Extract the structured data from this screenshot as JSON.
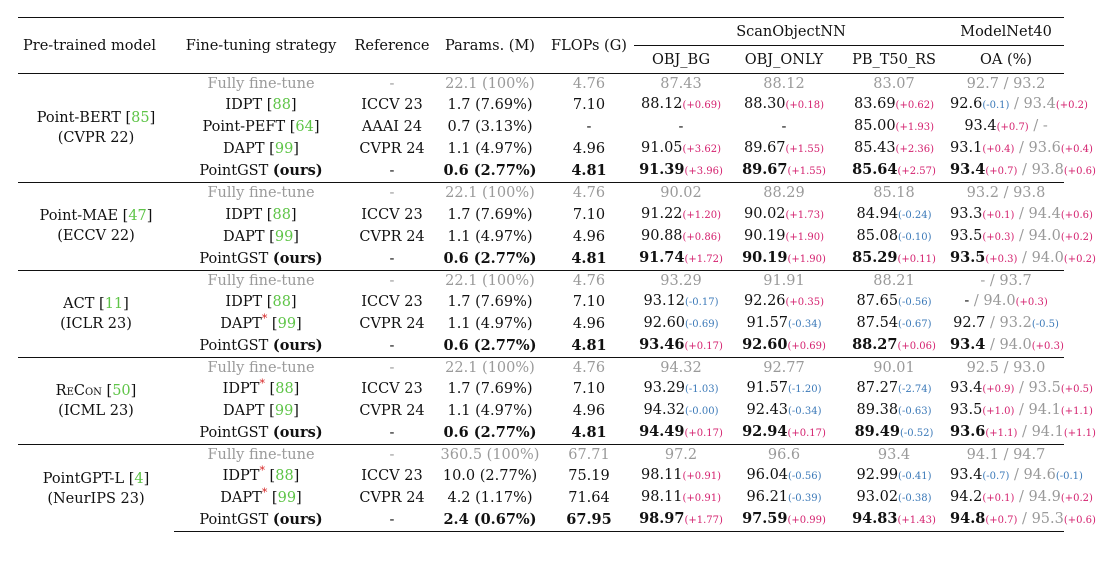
{
  "headers": {
    "model": "Pre-trained model",
    "strategy": "Fine-tuning strategy",
    "reference": "Reference",
    "params": "Params. (M)",
    "flops": "FLOPs (G)",
    "scan": "ScanObjectNN",
    "modelnet": "ModelNet40",
    "obj_bg": "OBJ_BG",
    "obj_only": "OBJ_ONLY",
    "pb": "PB_T50_RS",
    "oa": "OA (%)",
    "oa_sep": " / "
  },
  "groups": [
    {
      "model": "Point-BERT",
      "model_cite": "85",
      "venue": "(CVPR 22)",
      "rows": [
        {
          "strategy": "Fully fine-tune",
          "ref": "-",
          "params": "22.1 (100%)",
          "flops": "4.76",
          "obj_bg": "87.43",
          "obj_only": "88.12",
          "pb": "83.07",
          "oa1": "92.7",
          "oa2": "93.2"
        },
        {
          "strategy": "IDPT",
          "cite": "88",
          "ref": "ICCV 23",
          "params": "1.7 (7.69%)",
          "flops": "7.10",
          "obj_bg": "88.12",
          "obj_bg_d": "(+0.69)",
          "obj_only": "88.30",
          "obj_only_d": "(+0.18)",
          "pb": "83.69",
          "pb_d": "(+0.62)",
          "oa1": "92.6",
          "oa1_d": "(-0.1)",
          "oa2": "93.4",
          "oa2_d": "(+0.2)"
        },
        {
          "strategy": "Point-PEFT",
          "cite": "64",
          "ref": "AAAI 24",
          "params": "0.7 (3.13%)",
          "flops": "-",
          "obj_bg": "-",
          "obj_only": "-",
          "pb": "85.00",
          "pb_d": "(+1.93)",
          "oa1": "93.4",
          "oa1_d": "(+0.7)",
          "oa2": "-"
        },
        {
          "strategy": "DAPT",
          "cite": "99",
          "ref": "CVPR 24",
          "params": "1.1 (4.97%)",
          "flops": "4.96",
          "obj_bg": "91.05",
          "obj_bg_d": "(+3.62)",
          "obj_only": "89.67",
          "obj_only_d": "(+1.55)",
          "pb": "85.43",
          "pb_d": "(+2.36)",
          "oa1": "93.1",
          "oa1_d": "(+0.4)",
          "oa2": "93.6",
          "oa2_d": "(+0.4)"
        },
        {
          "strategy": "PointGST",
          "ours": "(ours)",
          "ref": "-",
          "params": "0.6 (2.77%)",
          "flops": "4.81",
          "obj_bg": "91.39",
          "obj_bg_d": "(+3.96)",
          "obj_only": "89.67",
          "obj_only_d": "(+1.55)",
          "pb": "85.64",
          "pb_d": "(+2.57)",
          "oa1": "93.4",
          "oa1_d": "(+0.7)",
          "oa2": "93.8",
          "oa2_d": "(+0.6)"
        }
      ]
    },
    {
      "model": "Point-MAE",
      "model_cite": "47",
      "venue": "(ECCV 22)",
      "rows": [
        {
          "strategy": "Fully fine-tune",
          "ref": "-",
          "params": "22.1 (100%)",
          "flops": "4.76",
          "obj_bg": "90.02",
          "obj_only": "88.29",
          "pb": "85.18",
          "oa1": "93.2",
          "oa2": "93.8"
        },
        {
          "strategy": "IDPT",
          "cite": "88",
          "ref": "ICCV 23",
          "params": "1.7 (7.69%)",
          "flops": "7.10",
          "obj_bg": "91.22",
          "obj_bg_d": "(+1.20)",
          "obj_only": "90.02",
          "obj_only_d": "(+1.73)",
          "pb": "84.94",
          "pb_d": "(-0.24)",
          "oa1": "93.3",
          "oa1_d": "(+0.1)",
          "oa2": "94.4",
          "oa2_d": "(+0.6)"
        },
        {
          "strategy": "DAPT",
          "cite": "99",
          "ref": "CVPR 24",
          "params": "1.1 (4.97%)",
          "flops": "4.96",
          "obj_bg": "90.88",
          "obj_bg_d": "(+0.86)",
          "obj_only": "90.19",
          "obj_only_d": "(+1.90)",
          "pb": "85.08",
          "pb_d": "(-0.10)",
          "oa1": "93.5",
          "oa1_d": "(+0.3)",
          "oa2": "94.0",
          "oa2_d": "(+0.2)"
        },
        {
          "strategy": "PointGST",
          "ours": "(ours)",
          "ref": "-",
          "params": "0.6 (2.77%)",
          "flops": "4.81",
          "obj_bg": "91.74",
          "obj_bg_d": "(+1.72)",
          "obj_only": "90.19",
          "obj_only_d": "(+1.90)",
          "pb": "85.29",
          "pb_d": "(+0.11)",
          "oa1": "93.5",
          "oa1_d": "(+0.3)",
          "oa2": "94.0",
          "oa2_d": "(+0.2)"
        }
      ]
    },
    {
      "model": "ACT",
      "model_cite": "11",
      "venue": "(ICLR 23)",
      "rows": [
        {
          "strategy": "Fully fine-tune",
          "ref": "-",
          "params": "22.1 (100%)",
          "flops": "4.76",
          "obj_bg": "93.29",
          "obj_only": "91.91",
          "pb": "88.21",
          "oa1": "-",
          "oa2": "93.7"
        },
        {
          "strategy": "IDPT",
          "cite": "88",
          "ref": "ICCV 23",
          "params": "1.7 (7.69%)",
          "flops": "7.10",
          "obj_bg": "93.12",
          "obj_bg_d": "(-0.17)",
          "obj_only": "92.26",
          "obj_only_d": "(+0.35)",
          "pb": "87.65",
          "pb_d": "(-0.56)",
          "oa1": "-",
          "oa2": "94.0",
          "oa2_d": "(+0.3)"
        },
        {
          "strategy": "DAPT",
          "star": "*",
          "cite": "99",
          "ref": "CVPR 24",
          "params": "1.1 (4.97%)",
          "flops": "4.96",
          "obj_bg": "92.60",
          "obj_bg_d": "(-0.69)",
          "obj_only": "91.57",
          "obj_only_d": "(-0.34)",
          "pb": "87.54",
          "pb_d": "(-0.67)",
          "oa1": "92.7",
          "oa2": "93.2",
          "oa2_d": "(-0.5)"
        },
        {
          "strategy": "PointGST",
          "ours": "(ours)",
          "ref": "-",
          "params": "0.6 (2.77%)",
          "flops": "4.81",
          "obj_bg": "93.46",
          "obj_bg_d": "(+0.17)",
          "obj_only": "92.60",
          "obj_only_d": "(+0.69)",
          "pb": "88.27",
          "pb_d": "(+0.06)",
          "oa1": "93.4",
          "oa2": "94.0",
          "oa2_d": "(+0.3)"
        }
      ]
    },
    {
      "model": "ReCon",
      "model_cite": "50",
      "venue": "(ICML 23)",
      "rows": [
        {
          "strategy": "Fully fine-tune",
          "ref": "-",
          "params": "22.1 (100%)",
          "flops": "4.76",
          "obj_bg": "94.32",
          "obj_only": "92.77",
          "pb": "90.01",
          "oa1": "92.5",
          "oa2": "93.0"
        },
        {
          "strategy": "IDPT",
          "star": "*",
          "cite": "88",
          "ref": "ICCV 23",
          "params": "1.7 (7.69%)",
          "flops": "7.10",
          "obj_bg": "93.29",
          "obj_bg_d": "(-1.03)",
          "obj_only": "91.57",
          "obj_only_d": "(-1.20)",
          "pb": "87.27",
          "pb_d": "(-2.74)",
          "oa1": "93.4",
          "oa1_d": "(+0.9)",
          "oa2": "93.5",
          "oa2_d": "(+0.5)"
        },
        {
          "strategy": "DAPT",
          "cite": "99",
          "ref": "CVPR 24",
          "params": "1.1 (4.97%)",
          "flops": "4.96",
          "obj_bg": "94.32",
          "obj_bg_d": "(-0.00)",
          "obj_only": "92.43",
          "obj_only_d": "(-0.34)",
          "pb": "89.38",
          "pb_d": "(-0.63)",
          "oa1": "93.5",
          "oa1_d": "(+1.0)",
          "oa2": "94.1",
          "oa2_d": "(+1.1)"
        },
        {
          "strategy": "PointGST",
          "ours": "(ours)",
          "ref": "-",
          "params": "0.6 (2.77%)",
          "flops": "4.81",
          "obj_bg": "94.49",
          "obj_bg_d": "(+0.17)",
          "obj_only": "92.94",
          "obj_only_d": "(+0.17)",
          "pb": "89.49",
          "pb_d": "(-0.52)",
          "oa1": "93.6",
          "oa1_d": "(+1.1)",
          "oa2": "94.1",
          "oa2_d": "(+1.1)"
        }
      ]
    },
    {
      "model": "PointGPT-L",
      "model_cite": "4",
      "venue": "(NeurIPS 23)",
      "rows": [
        {
          "strategy": "Fully fine-tune",
          "ref": "-",
          "params": "360.5 (100%)",
          "flops": "67.71",
          "obj_bg": "97.2",
          "obj_only": "96.6",
          "pb": "93.4",
          "oa1": "94.1",
          "oa2": "94.7"
        },
        {
          "strategy": "IDPT",
          "star": "*",
          "cite": "88",
          "ref": "ICCV 23",
          "params": "10.0 (2.77%)",
          "flops": "75.19",
          "obj_bg": "98.11",
          "obj_bg_d": "(+0.91)",
          "obj_only": "96.04",
          "obj_only_d": "(-0.56)",
          "pb": "92.99",
          "pb_d": "(-0.41)",
          "oa1": "93.4",
          "oa1_d": "(-0.7)",
          "oa2": "94.6",
          "oa2_d": "(-0.1)"
        },
        {
          "strategy": "DAPT",
          "star": "*",
          "cite": "99",
          "ref": "CVPR 24",
          "params": "4.2 (1.17%)",
          "flops": "71.64",
          "obj_bg": "98.11",
          "obj_bg_d": "(+0.91)",
          "obj_only": "96.21",
          "obj_only_d": "(-0.39)",
          "pb": "93.02",
          "pb_d": "(-0.38)",
          "oa1": "94.2",
          "oa1_d": "(+0.1)",
          "oa2": "94.9",
          "oa2_d": "(+0.2)"
        },
        {
          "strategy": "PointGST",
          "ours": "(ours)",
          "ref": "-",
          "params": "2.4 (0.67%)",
          "flops": "67.95",
          "obj_bg": "98.97",
          "obj_bg_d": "(+1.77)",
          "obj_only": "97.59",
          "obj_only_d": "(+0.99)",
          "pb": "94.83",
          "pb_d": "(+1.43)",
          "oa1": "94.8",
          "oa1_d": "(+0.7)",
          "oa2": "95.3",
          "oa2_d": "(+0.6)"
        }
      ]
    }
  ]
}
